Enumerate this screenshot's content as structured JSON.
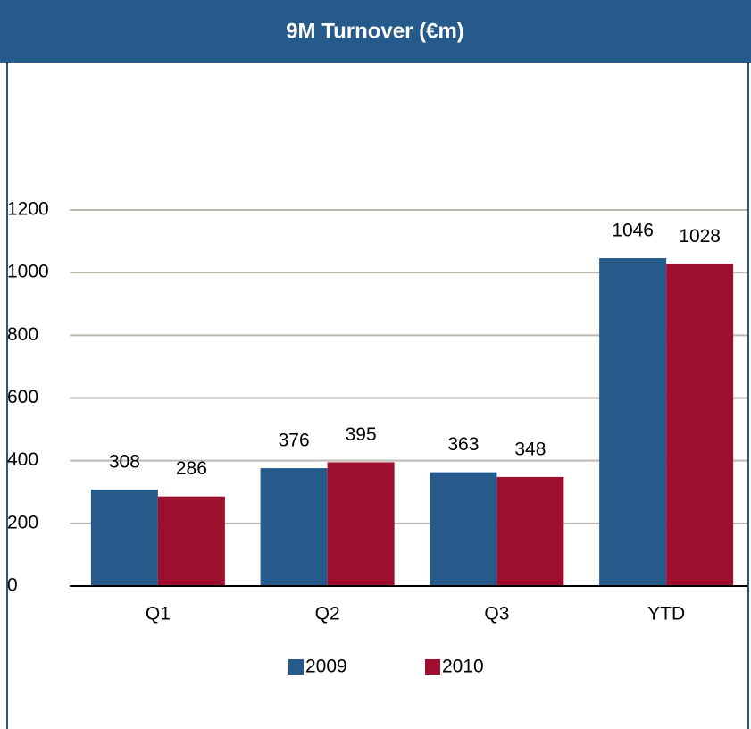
{
  "chart_data": {
    "type": "bar",
    "title": "9M Turnover (€m)",
    "categories": [
      "Q1",
      "Q2",
      "Q3",
      "YTD"
    ],
    "series": [
      {
        "name": "2009",
        "color": "#255a8a",
        "values": [
          308,
          376,
          363,
          1046
        ]
      },
      {
        "name": "2010",
        "color": "#9e0f2e",
        "values": [
          286,
          395,
          348,
          1028
        ]
      }
    ],
    "ylim": [
      0,
      1200
    ],
    "yticks": [
      0,
      200,
      400,
      600,
      800,
      1000,
      1200
    ],
    "grid": true,
    "legend": "bottom"
  }
}
